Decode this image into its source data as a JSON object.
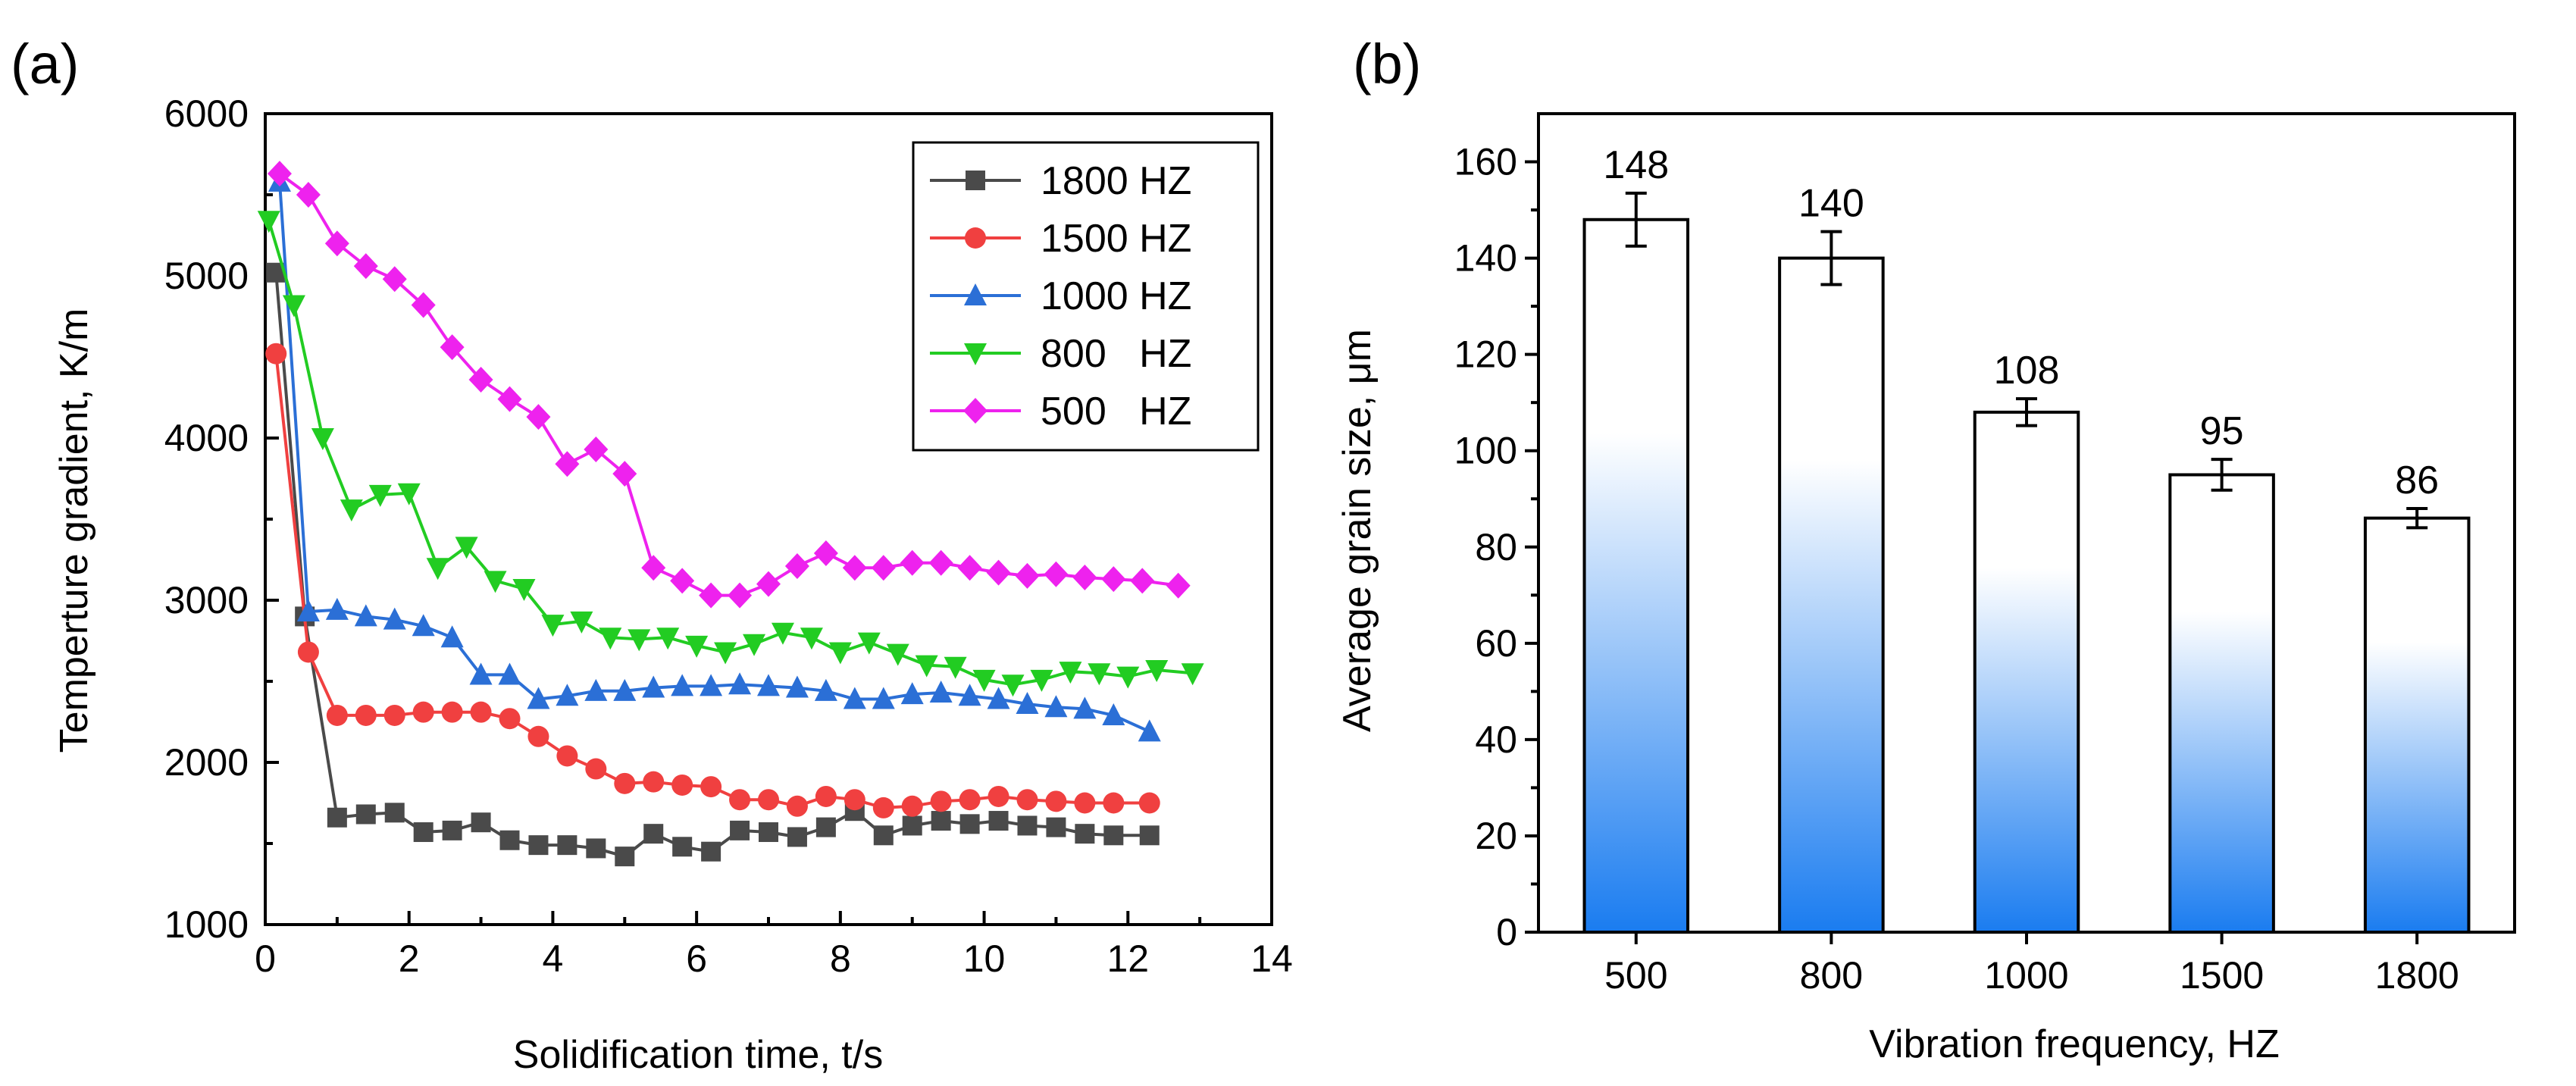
{
  "figure": {
    "panel_a_label": "(a)",
    "panel_b_label": "(b)"
  },
  "chart_data": [
    {
      "type": "line",
      "title": "",
      "panel": "(a)",
      "xlabel": "Solidification time, t/s",
      "ylabel": "Temperture gradient, K/m",
      "xlim": [
        0,
        14
      ],
      "ylim": [
        1000,
        6000
      ],
      "xticks": [
        0,
        2,
        4,
        6,
        8,
        10,
        12,
        14
      ],
      "yticks": [
        1000,
        2000,
        3000,
        4000,
        5000,
        6000
      ],
      "grid": false,
      "legend_position": "top-right",
      "series": [
        {
          "name": "1800 HZ",
          "color": "#4a4a4a",
          "marker": "square",
          "x": [
            0.15,
            0.55,
            1.0,
            1.4,
            1.8,
            2.2,
            2.6,
            3.0,
            3.4,
            3.8,
            4.2,
            4.6,
            5.0,
            5.4,
            5.8,
            6.2,
            6.6,
            7.0,
            7.4,
            7.8,
            8.2,
            8.6,
            9.0,
            9.4,
            9.8,
            10.2,
            10.6,
            11.0,
            11.4,
            11.8,
            12.3
          ],
          "y": [
            5020,
            2900,
            1660,
            1680,
            1690,
            1570,
            1580,
            1630,
            1520,
            1490,
            1490,
            1470,
            1420,
            1560,
            1480,
            1450,
            1580,
            1570,
            1540,
            1600,
            1700,
            1550,
            1610,
            1640,
            1620,
            1640,
            1610,
            1600,
            1560,
            1550,
            1550
          ]
        },
        {
          "name": "1500 HZ",
          "color": "#f04040",
          "marker": "circle",
          "x": [
            0.15,
            0.6,
            1.0,
            1.4,
            1.8,
            2.2,
            2.6,
            3.0,
            3.4,
            3.8,
            4.2,
            4.6,
            5.0,
            5.4,
            5.8,
            6.2,
            6.6,
            7.0,
            7.4,
            7.8,
            8.2,
            8.6,
            9.0,
            9.4,
            9.8,
            10.2,
            10.6,
            11.0,
            11.4,
            11.8,
            12.3
          ],
          "y": [
            4520,
            2680,
            2290,
            2290,
            2290,
            2310,
            2310,
            2310,
            2270,
            2160,
            2040,
            1960,
            1870,
            1880,
            1860,
            1850,
            1770,
            1770,
            1730,
            1790,
            1770,
            1720,
            1730,
            1760,
            1770,
            1790,
            1770,
            1760,
            1750,
            1750,
            1750
          ]
        },
        {
          "name": "1000 HZ",
          "color": "#2b6fd6",
          "marker": "triangle-up",
          "x": [
            0.2,
            0.6,
            1.0,
            1.4,
            1.8,
            2.2,
            2.6,
            3.0,
            3.4,
            3.8,
            4.2,
            4.6,
            5.0,
            5.4,
            5.8,
            6.2,
            6.6,
            7.0,
            7.4,
            7.8,
            8.2,
            8.6,
            9.0,
            9.4,
            9.8,
            10.2,
            10.6,
            11.0,
            11.4,
            11.8,
            12.3
          ],
          "y": [
            5580,
            2930,
            2940,
            2900,
            2880,
            2840,
            2770,
            2540,
            2540,
            2390,
            2410,
            2440,
            2440,
            2460,
            2470,
            2470,
            2480,
            2470,
            2460,
            2440,
            2390,
            2390,
            2420,
            2430,
            2410,
            2390,
            2360,
            2340,
            2330,
            2290,
            2190
          ]
        },
        {
          "name": "800   HZ",
          "color": "#22cc22",
          "marker": "triangle-down",
          "x": [
            0.05,
            0.4,
            0.8,
            1.2,
            1.6,
            2.0,
            2.4,
            2.8,
            3.2,
            3.6,
            4.0,
            4.4,
            4.8,
            5.2,
            5.6,
            6.0,
            6.4,
            6.8,
            7.2,
            7.6,
            8.0,
            8.4,
            8.8,
            9.2,
            9.6,
            10.0,
            10.4,
            10.8,
            11.2,
            11.6,
            12.0,
            12.4,
            12.9
          ],
          "y": [
            5340,
            4820,
            4000,
            3560,
            3650,
            3660,
            3200,
            3330,
            3120,
            3070,
            2850,
            2870,
            2770,
            2760,
            2770,
            2720,
            2680,
            2730,
            2800,
            2770,
            2680,
            2740,
            2670,
            2600,
            2590,
            2510,
            2480,
            2510,
            2560,
            2550,
            2530,
            2570,
            2550
          ]
        },
        {
          "name": "500   HZ",
          "color": "#ee22ee",
          "marker": "diamond",
          "x": [
            0.2,
            0.6,
            1.0,
            1.4,
            1.8,
            2.2,
            2.6,
            3.0,
            3.4,
            3.8,
            4.2,
            4.6,
            5.0,
            5.4,
            5.8,
            6.2,
            6.6,
            7.0,
            7.4,
            7.8,
            8.2,
            8.6,
            9.0,
            9.4,
            9.8,
            10.2,
            10.6,
            11.0,
            11.4,
            11.8,
            12.2,
            12.7
          ],
          "y": [
            5630,
            5500,
            5200,
            5060,
            4980,
            4820,
            4560,
            4360,
            4240,
            4130,
            3840,
            3930,
            3780,
            3200,
            3120,
            3030,
            3030,
            3100,
            3210,
            3290,
            3200,
            3200,
            3230,
            3230,
            3200,
            3170,
            3150,
            3160,
            3140,
            3130,
            3120,
            3090
          ]
        }
      ]
    },
    {
      "type": "bar",
      "title": "",
      "panel": "(b)",
      "xlabel": "Vibration frequency, HZ",
      "ylabel": "Average grain size, μm",
      "categories": [
        "500",
        "800",
        "1000",
        "1500",
        "1800"
      ],
      "values": [
        148,
        140,
        108,
        95,
        86
      ],
      "errors": [
        5.5,
        5.5,
        2.8,
        3.2,
        2.0
      ],
      "data_labels": [
        "148",
        "140",
        "108",
        "95",
        "86"
      ],
      "ylim": [
        0,
        170
      ],
      "yticks": [
        0,
        20,
        40,
        60,
        80,
        100,
        120,
        140,
        160
      ],
      "grid": false,
      "bar_fill_top": "#ffffff",
      "bar_fill_bottom": "#1a7cf0"
    }
  ]
}
